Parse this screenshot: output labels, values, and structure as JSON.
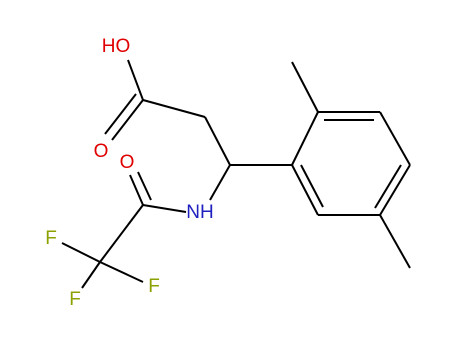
{
  "atoms": [
    {
      "label": "HO"
    },
    {
      "label": "O"
    },
    {
      "label": "O"
    },
    {
      "label": "NH"
    },
    {
      "label": "F"
    },
    {
      "label": "F"
    },
    {
      "label": "F"
    }
  ]
}
